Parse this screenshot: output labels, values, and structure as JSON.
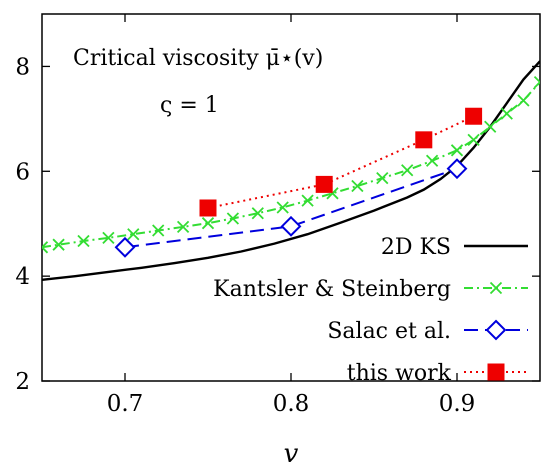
{
  "chart_data": {
    "type": "line",
    "xlabel": "v",
    "ylabel": "",
    "xlim": [
      0.65,
      0.95
    ],
    "ylim": [
      2,
      9
    ],
    "xticks": [
      "0.7",
      "0.8",
      "0.9"
    ],
    "yticks": [
      "2",
      "4",
      "6",
      "8"
    ],
    "grid": false,
    "legend_position": "bottom-right",
    "annotations": [
      "Critical viscosity μ̄⋆(v)",
      "ς = 1"
    ],
    "series": [
      {
        "name": "2D KS",
        "color": "#000000",
        "style": "solid",
        "marker": "none",
        "x": [
          0.65,
          0.67,
          0.69,
          0.71,
          0.73,
          0.75,
          0.77,
          0.79,
          0.81,
          0.83,
          0.85,
          0.87,
          0.88,
          0.89,
          0.9,
          0.91,
          0.92,
          0.93,
          0.94,
          0.95
        ],
        "y": [
          3.93,
          4.0,
          4.08,
          4.16,
          4.25,
          4.35,
          4.47,
          4.62,
          4.8,
          5.02,
          5.25,
          5.5,
          5.65,
          5.85,
          6.1,
          6.45,
          6.85,
          7.3,
          7.75,
          8.1
        ]
      },
      {
        "name": "Kantsler & Steinberg",
        "color": "#33dd33",
        "style": "dash-dot",
        "marker": "x",
        "x": [
          0.65,
          0.66,
          0.675,
          0.69,
          0.705,
          0.72,
          0.735,
          0.75,
          0.765,
          0.78,
          0.795,
          0.81,
          0.825,
          0.84,
          0.855,
          0.87,
          0.885,
          0.9,
          0.91,
          0.92,
          0.93,
          0.94,
          0.95
        ],
        "y": [
          4.55,
          4.6,
          4.67,
          4.73,
          4.8,
          4.87,
          4.94,
          5.01,
          5.1,
          5.2,
          5.31,
          5.44,
          5.58,
          5.72,
          5.87,
          6.02,
          6.2,
          6.4,
          6.6,
          6.85,
          7.1,
          7.35,
          7.7
        ]
      },
      {
        "name": "Salac et al.",
        "color": "#0000dd",
        "style": "dashed",
        "marker": "diamond-open",
        "x": [
          0.7,
          0.8,
          0.9
        ],
        "y": [
          4.55,
          4.95,
          6.05
        ]
      },
      {
        "name": "this work",
        "color": "#ee0000",
        "style": "dotted",
        "marker": "square-filled",
        "x": [
          0.75,
          0.82,
          0.88,
          0.91
        ],
        "y": [
          5.3,
          5.75,
          6.6,
          7.05
        ]
      }
    ]
  }
}
